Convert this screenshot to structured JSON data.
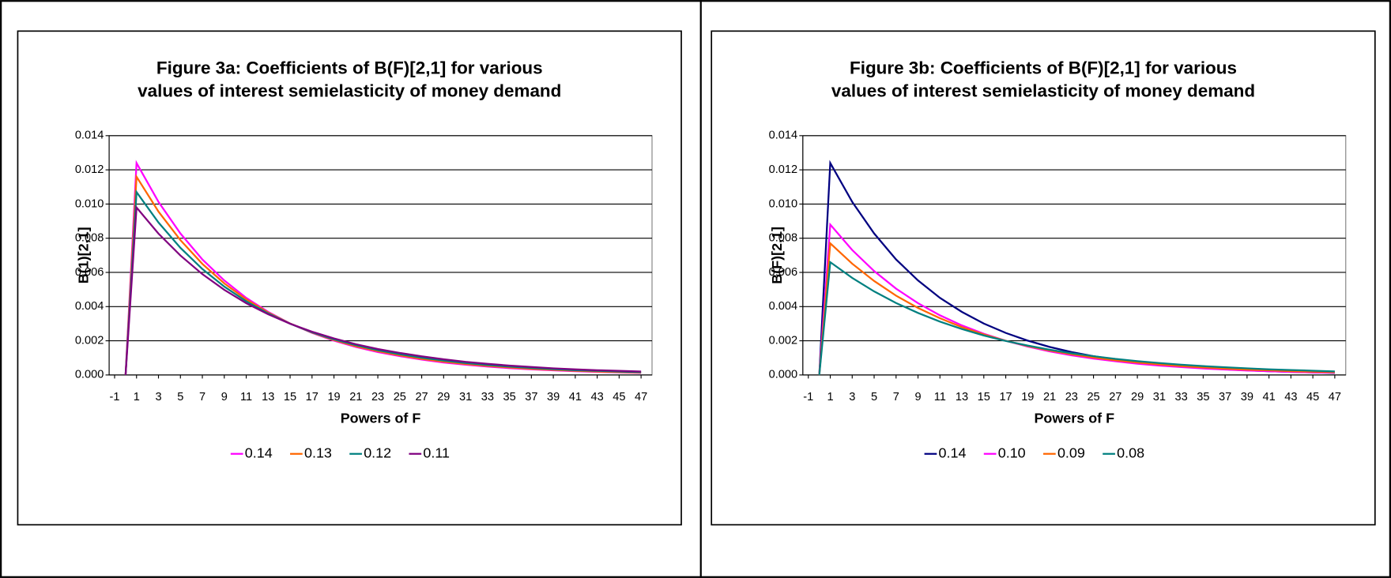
{
  "chart_data": [
    {
      "type": "line",
      "title": [
        "Figure 3a: Coefficients of B(F)[2,1] for various",
        "values of interest semielasticity of money demand"
      ],
      "xlabel": "Powers of F",
      "ylabel": "B(1)[2,1]",
      "x": [
        0,
        1,
        3,
        5,
        7,
        9,
        11,
        13,
        15,
        17,
        19,
        21,
        23,
        25,
        27,
        29,
        31,
        33,
        35,
        37,
        39,
        41,
        43,
        45,
        47
      ],
      "xlim": [
        -1.5,
        48
      ],
      "xticks": [
        -1,
        1,
        3,
        5,
        7,
        9,
        11,
        13,
        15,
        17,
        19,
        21,
        23,
        25,
        27,
        29,
        31,
        33,
        35,
        37,
        39,
        41,
        43,
        45,
        47
      ],
      "ylim": [
        0,
        0.014
      ],
      "yticks": [
        {
          "value": 0,
          "label": "0.000"
        },
        {
          "value": 0.002,
          "label": "0.002"
        },
        {
          "value": 0.004,
          "label": "0.004"
        },
        {
          "value": 0.006,
          "label": "0.006"
        },
        {
          "value": 0.008,
          "label": "0.008"
        },
        {
          "value": 0.01,
          "label": "0.010"
        },
        {
          "value": 0.012,
          "label": "0.012"
        },
        {
          "value": 0.014,
          "label": "0.014"
        }
      ],
      "grid": true,
      "legend": "bottom",
      "series": [
        {
          "name": "0.14",
          "color": "#ff00ff",
          "values": [
            0,
            0.0124,
            0.01013,
            0.00828,
            0.00676,
            0.00553,
            0.00451,
            0.00369,
            0.00301,
            0.00246,
            0.00201,
            0.00164,
            0.00134,
            0.0011,
            0.0009,
            0.00073,
            0.0006,
            0.00049,
            0.0004,
            0.00033,
            0.00027,
            0.00022,
            0.00018,
            0.00015,
            0.00012
          ]
        },
        {
          "name": "0.13",
          "color": "#ff6600",
          "values": [
            0,
            0.0116,
            0.00956,
            0.00789,
            0.0065,
            0.00536,
            0.00442,
            0.00365,
            0.00301,
            0.00248,
            0.00204,
            0.00168,
            0.00139,
            0.00115,
            0.00094,
            0.00078,
            0.00064,
            0.00053,
            0.00044,
            0.00036,
            0.0003,
            0.00024,
            0.0002,
            0.00017,
            0.00014
          ]
        },
        {
          "name": "0.12",
          "color": "#008080",
          "values": [
            0,
            0.0107,
            0.00892,
            0.00744,
            0.0062,
            0.00517,
            0.00431,
            0.0036,
            0.003,
            0.0025,
            0.00208,
            0.00174,
            0.00145,
            0.00121,
            0.00101,
            0.00084,
            0.0007,
            0.00058,
            0.00049,
            0.00041,
            0.00034,
            0.00028,
            0.00024,
            0.0002,
            0.00016
          ]
        },
        {
          "name": "0.11",
          "color": "#800080",
          "values": [
            0,
            0.0098,
            0.00827,
            0.00699,
            0.0059,
            0.00498,
            0.0042,
            0.00355,
            0.003,
            0.00253,
            0.00214,
            0.0018,
            0.00152,
            0.00129,
            0.00109,
            0.00092,
            0.00077,
            0.00065,
            0.00055,
            0.00047,
            0.00039,
            0.00033,
            0.00028,
            0.00024,
            0.0002
          ]
        }
      ]
    },
    {
      "type": "line",
      "title": [
        "Figure 3b: Coefficients of B(F)[2,1] for various",
        "values of interest semielasticity of money demand"
      ],
      "xlabel": "Powers of F",
      "ylabel": "B(F)[2,1]",
      "x": [
        0,
        1,
        3,
        5,
        7,
        9,
        11,
        13,
        15,
        17,
        19,
        21,
        23,
        25,
        27,
        29,
        31,
        33,
        35,
        37,
        39,
        41,
        43,
        45,
        47
      ],
      "xlim": [
        -1.5,
        48
      ],
      "xticks": [
        -1,
        1,
        3,
        5,
        7,
        9,
        11,
        13,
        15,
        17,
        19,
        21,
        23,
        25,
        27,
        29,
        31,
        33,
        35,
        37,
        39,
        41,
        43,
        45,
        47
      ],
      "ylim": [
        0,
        0.014
      ],
      "yticks": [
        {
          "value": 0,
          "label": "0.000"
        },
        {
          "value": 0.002,
          "label": "0.002"
        },
        {
          "value": 0.004,
          "label": "0.004"
        },
        {
          "value": 0.006,
          "label": "0.006"
        },
        {
          "value": 0.008,
          "label": "0.008"
        },
        {
          "value": 0.01,
          "label": "0.010"
        },
        {
          "value": 0.012,
          "label": "0.012"
        },
        {
          "value": 0.014,
          "label": "0.014"
        }
      ],
      "grid": true,
      "legend": "bottom",
      "series": [
        {
          "name": "0.14",
          "color": "#000080",
          "values": [
            0,
            0.0124,
            0.01013,
            0.00828,
            0.00676,
            0.00553,
            0.00451,
            0.00369,
            0.00301,
            0.00246,
            0.00201,
            0.00164,
            0.00134,
            0.0011,
            0.0009,
            0.00073,
            0.0006,
            0.00049,
            0.0004,
            0.00033,
            0.00027,
            0.00022,
            0.00018,
            0.00015,
            0.00012
          ]
        },
        {
          "name": "0.10",
          "color": "#ff00ff",
          "values": [
            0,
            0.0088,
            0.00731,
            0.00608,
            0.00505,
            0.0042,
            0.00349,
            0.0029,
            0.00241,
            0.002,
            0.00166,
            0.00138,
            0.00115,
            0.00096,
            0.0008,
            0.00066,
            0.00055,
            0.00046,
            0.00038,
            0.00032,
            0.00026,
            0.00022,
            0.00018,
            0.00015,
            0.00013
          ]
        },
        {
          "name": "0.09",
          "color": "#ff6600",
          "values": [
            0,
            0.0077,
            0.00651,
            0.0055,
            0.00464,
            0.00392,
            0.00332,
            0.0028,
            0.00237,
            0.002,
            0.00169,
            0.00143,
            0.00121,
            0.00102,
            0.00086,
            0.00073,
            0.00062,
            0.00052,
            0.00044,
            0.00037,
            0.00031,
            0.00027,
            0.00022,
            0.00019,
            0.00016
          ]
        },
        {
          "name": "0.08",
          "color": "#008080",
          "values": [
            0,
            0.0066,
            0.00568,
            0.00489,
            0.00421,
            0.00363,
            0.00312,
            0.00269,
            0.00231,
            0.00199,
            0.00172,
            0.00148,
            0.00127,
            0.0011,
            0.00094,
            0.00081,
            0.0007,
            0.0006,
            0.00052,
            0.00045,
            0.00039,
            0.00033,
            0.00029,
            0.00025,
            0.00021
          ]
        }
      ]
    }
  ]
}
